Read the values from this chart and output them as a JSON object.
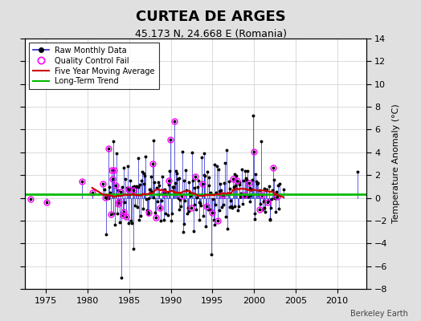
{
  "title": "CURTEA DE ARGES",
  "subtitle": "45.173 N, 24.668 E (Romania)",
  "ylabel": "Temperature Anomaly (°C)",
  "credit": "Berkeley Earth",
  "ylim": [
    -8,
    14
  ],
  "yticks": [
    -8,
    -6,
    -4,
    -2,
    0,
    2,
    4,
    6,
    8,
    10,
    12,
    14
  ],
  "xlim": [
    1972.5,
    2013.5
  ],
  "xticks": [
    1975,
    1980,
    1985,
    1990,
    1995,
    2000,
    2005,
    2010
  ],
  "start_year": 1973,
  "end_year": 2013,
  "long_term_trend_intercept": 0.3,
  "long_term_trend_slope": 0.0,
  "bg_color": "#e0e0e0",
  "plot_bg_color": "#ffffff",
  "raw_line_color": "#2222cc",
  "raw_marker_color": "#000000",
  "qc_fail_color": "#ff00ff",
  "moving_avg_color": "#cc0000",
  "trend_color": "#00bb00",
  "grid_color": "#cccccc",
  "figsize": [
    5.24,
    4.0
  ],
  "dpi": 100
}
